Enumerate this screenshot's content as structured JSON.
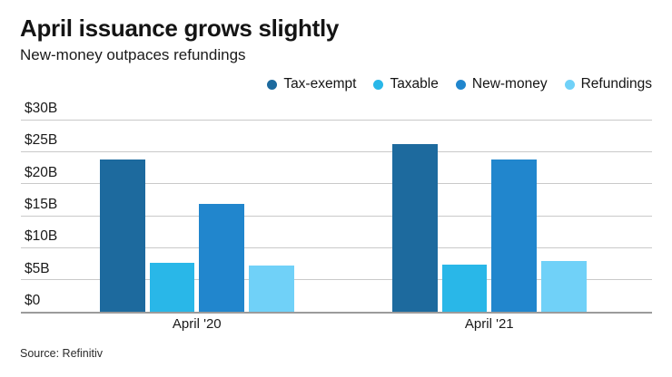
{
  "header": {
    "title": "April issuance grows slightly",
    "subtitle": "New-money outpaces refundings"
  },
  "chart_data": {
    "type": "bar",
    "categories": [
      "April '20",
      "April '21"
    ],
    "series": [
      {
        "name": "Tax-exempt",
        "color": "#1d6a9e",
        "values": [
          23.8,
          26.2
        ]
      },
      {
        "name": "Taxable",
        "color": "#29b7e8",
        "values": [
          7.7,
          7.3
        ]
      },
      {
        "name": "New-money",
        "color": "#2186cd",
        "values": [
          16.8,
          23.8
        ]
      },
      {
        "name": "Refundings",
        "color": "#70d1f8",
        "values": [
          7.2,
          7.9
        ]
      }
    ],
    "yticks": [
      {
        "value": 0,
        "label": "$0"
      },
      {
        "value": 5,
        "label": "$5B"
      },
      {
        "value": 10,
        "label": "$10B"
      },
      {
        "value": 15,
        "label": "$15B"
      },
      {
        "value": 20,
        "label": "$20B"
      },
      {
        "value": 25,
        "label": "$25B"
      },
      {
        "value": 30,
        "label": "$30B"
      }
    ],
    "ylim": [
      0,
      30
    ],
    "grid": true,
    "legend_position": "top-right",
    "grid_color": "#c9c9c9",
    "axis_color": "#9b9b9b"
  },
  "footer": {
    "source": "Source: Refinitiv"
  }
}
